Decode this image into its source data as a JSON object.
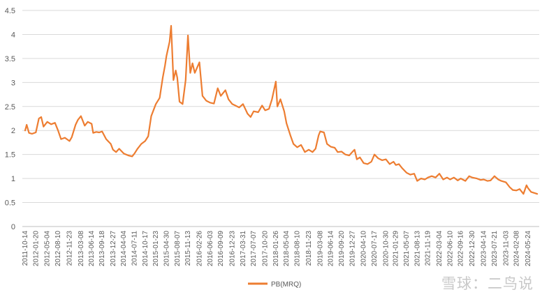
{
  "chart_data": {
    "type": "line",
    "title": "",
    "xlabel": "",
    "ylabel": "",
    "ylim": [
      0,
      4.5
    ],
    "yticks": [
      "0",
      "0.5",
      "1",
      "1.5",
      "2",
      "2.5",
      "3",
      "3.5",
      "4",
      "4.5"
    ],
    "grid": "horizontal",
    "legend_position": "bottom",
    "x_tick_labels": [
      "2011-10-14",
      "2012-01-20",
      "2012-05-04",
      "2012-08-10",
      "2012-11-23",
      "2013-03-08",
      "2013-06-14",
      "2013-09-18",
      "2013-12-27",
      "2014-04-04",
      "2014-07-11",
      "2014-10-17",
      "2015-01-23",
      "2015-04-30",
      "2015-08-07",
      "2015-11-13",
      "2016-02-26",
      "2016-06-03",
      "2016-09-09",
      "2016-12-23",
      "2017-03-31",
      "2017-07-07",
      "2017-10-20",
      "2018-01-26",
      "2018-05-04",
      "2018-08-10",
      "2018-11-23",
      "2019-03-08",
      "2019-06-14",
      "2019-09-20",
      "2019-12-27",
      "2020-04-10",
      "2020-07-17",
      "2020-10-30",
      "2021-01-29",
      "2021-05-07",
      "2021-08-13",
      "2021-11-19",
      "2022-03-04",
      "2022-06-10",
      "2022-09-16",
      "2022-12-30",
      "2023-04-14",
      "2023-07-21",
      "2023-11-03",
      "2024-02-08",
      "2024-05-24"
    ],
    "series": [
      {
        "name": "PB(MRQ)",
        "color": "#ED7D31",
        "values": [
          {
            "x": "2011-10-14",
            "y": 2.0
          },
          {
            "x": "2011-10-28",
            "y": 2.12
          },
          {
            "x": "2011-11-18",
            "y": 1.95
          },
          {
            "x": "2011-12-16",
            "y": 1.93
          },
          {
            "x": "2012-01-20",
            "y": 1.96
          },
          {
            "x": "2012-02-17",
            "y": 2.25
          },
          {
            "x": "2012-03-09",
            "y": 2.28
          },
          {
            "x": "2012-03-30",
            "y": 2.08
          },
          {
            "x": "2012-05-04",
            "y": 2.18
          },
          {
            "x": "2012-06-08",
            "y": 2.13
          },
          {
            "x": "2012-07-13",
            "y": 2.16
          },
          {
            "x": "2012-08-10",
            "y": 2.0
          },
          {
            "x": "2012-09-07",
            "y": 1.82
          },
          {
            "x": "2012-10-12",
            "y": 1.85
          },
          {
            "x": "2012-11-23",
            "y": 1.78
          },
          {
            "x": "2012-12-14",
            "y": 1.86
          },
          {
            "x": "2013-01-18",
            "y": 2.12
          },
          {
            "x": "2013-02-08",
            "y": 2.22
          },
          {
            "x": "2013-03-08",
            "y": 2.3
          },
          {
            "x": "2013-04-12",
            "y": 2.1
          },
          {
            "x": "2013-05-10",
            "y": 2.18
          },
          {
            "x": "2013-06-14",
            "y": 2.14
          },
          {
            "x": "2013-06-28",
            "y": 1.95
          },
          {
            "x": "2013-07-26",
            "y": 1.97
          },
          {
            "x": "2013-08-23",
            "y": 1.96
          },
          {
            "x": "2013-09-18",
            "y": 1.98
          },
          {
            "x": "2013-10-25",
            "y": 1.82
          },
          {
            "x": "2013-12-06",
            "y": 1.72
          },
          {
            "x": "2013-12-27",
            "y": 1.6
          },
          {
            "x": "2014-01-24",
            "y": 1.55
          },
          {
            "x": "2014-02-21",
            "y": 1.62
          },
          {
            "x": "2014-04-04",
            "y": 1.52
          },
          {
            "x": "2014-05-16",
            "y": 1.48
          },
          {
            "x": "2014-06-20",
            "y": 1.46
          },
          {
            "x": "2014-07-11",
            "y": 1.52
          },
          {
            "x": "2014-08-08",
            "y": 1.62
          },
          {
            "x": "2014-09-12",
            "y": 1.72
          },
          {
            "x": "2014-10-17",
            "y": 1.78
          },
          {
            "x": "2014-11-14",
            "y": 1.88
          },
          {
            "x": "2014-12-12",
            "y": 2.3
          },
          {
            "x": "2015-01-23",
            "y": 2.55
          },
          {
            "x": "2015-02-27",
            "y": 2.68
          },
          {
            "x": "2015-03-27",
            "y": 3.1
          },
          {
            "x": "2015-04-17",
            "y": 3.35
          },
          {
            "x": "2015-04-30",
            "y": 3.55
          },
          {
            "x": "2015-05-29",
            "y": 3.85
          },
          {
            "x": "2015-06-12",
            "y": 4.18
          },
          {
            "x": "2015-07-03",
            "y": 3.05
          },
          {
            "x": "2015-07-24",
            "y": 3.25
          },
          {
            "x": "2015-08-07",
            "y": 3.1
          },
          {
            "x": "2015-08-28",
            "y": 2.6
          },
          {
            "x": "2015-09-25",
            "y": 2.55
          },
          {
            "x": "2015-10-23",
            "y": 3.05
          },
          {
            "x": "2015-11-13",
            "y": 3.98
          },
          {
            "x": "2015-12-04",
            "y": 3.2
          },
          {
            "x": "2015-12-25",
            "y": 3.4
          },
          {
            "x": "2016-01-15",
            "y": 3.2
          },
          {
            "x": "2016-02-26",
            "y": 3.42
          },
          {
            "x": "2016-03-25",
            "y": 2.72
          },
          {
            "x": "2016-04-29",
            "y": 2.62
          },
          {
            "x": "2016-06-03",
            "y": 2.58
          },
          {
            "x": "2016-07-08",
            "y": 2.56
          },
          {
            "x": "2016-08-12",
            "y": 2.88
          },
          {
            "x": "2016-09-09",
            "y": 2.72
          },
          {
            "x": "2016-10-21",
            "y": 2.84
          },
          {
            "x": "2016-11-18",
            "y": 2.65
          },
          {
            "x": "2016-12-23",
            "y": 2.55
          },
          {
            "x": "2017-01-20",
            "y": 2.52
          },
          {
            "x": "2017-02-24",
            "y": 2.48
          },
          {
            "x": "2017-03-31",
            "y": 2.55
          },
          {
            "x": "2017-05-12",
            "y": 2.35
          },
          {
            "x": "2017-06-09",
            "y": 2.28
          },
          {
            "x": "2017-07-07",
            "y": 2.4
          },
          {
            "x": "2017-08-18",
            "y": 2.38
          },
          {
            "x": "2017-09-22",
            "y": 2.52
          },
          {
            "x": "2017-10-20",
            "y": 2.42
          },
          {
            "x": "2017-11-24",
            "y": 2.45
          },
          {
            "x": "2017-12-22",
            "y": 2.65
          },
          {
            "x": "2018-01-26",
            "y": 3.02
          },
          {
            "x": "2018-02-09",
            "y": 2.5
          },
          {
            "x": "2018-03-09",
            "y": 2.65
          },
          {
            "x": "2018-04-13",
            "y": 2.4
          },
          {
            "x": "2018-05-04",
            "y": 2.15
          },
          {
            "x": "2018-06-08",
            "y": 1.9
          },
          {
            "x": "2018-07-06",
            "y": 1.72
          },
          {
            "x": "2018-08-10",
            "y": 1.65
          },
          {
            "x": "2018-09-14",
            "y": 1.7
          },
          {
            "x": "2018-10-19",
            "y": 1.55
          },
          {
            "x": "2018-11-23",
            "y": 1.6
          },
          {
            "x": "2018-12-28",
            "y": 1.55
          },
          {
            "x": "2019-01-25",
            "y": 1.62
          },
          {
            "x": "2019-02-22",
            "y": 1.9
          },
          {
            "x": "2019-03-08",
            "y": 1.98
          },
          {
            "x": "2019-04-12",
            "y": 1.96
          },
          {
            "x": "2019-05-10",
            "y": 1.72
          },
          {
            "x": "2019-06-14",
            "y": 1.66
          },
          {
            "x": "2019-07-19",
            "y": 1.64
          },
          {
            "x": "2019-08-16",
            "y": 1.55
          },
          {
            "x": "2019-09-20",
            "y": 1.56
          },
          {
            "x": "2019-10-25",
            "y": 1.5
          },
          {
            "x": "2019-11-29",
            "y": 1.48
          },
          {
            "x": "2019-12-27",
            "y": 1.55
          },
          {
            "x": "2020-01-17",
            "y": 1.6
          },
          {
            "x": "2020-02-07",
            "y": 1.4
          },
          {
            "x": "2020-03-06",
            "y": 1.44
          },
          {
            "x": "2020-04-10",
            "y": 1.32
          },
          {
            "x": "2020-05-15",
            "y": 1.3
          },
          {
            "x": "2020-06-19",
            "y": 1.35
          },
          {
            "x": "2020-07-17",
            "y": 1.5
          },
          {
            "x": "2020-08-21",
            "y": 1.42
          },
          {
            "x": "2020-09-25",
            "y": 1.38
          },
          {
            "x": "2020-10-30",
            "y": 1.4
          },
          {
            "x": "2020-12-04",
            "y": 1.3
          },
          {
            "x": "2021-01-08",
            "y": 1.35
          },
          {
            "x": "2021-01-29",
            "y": 1.28
          },
          {
            "x": "2021-02-26",
            "y": 1.3
          },
          {
            "x": "2021-03-26",
            "y": 1.22
          },
          {
            "x": "2021-05-07",
            "y": 1.12
          },
          {
            "x": "2021-06-11",
            "y": 1.08
          },
          {
            "x": "2021-07-16",
            "y": 1.1
          },
          {
            "x": "2021-08-13",
            "y": 0.95
          },
          {
            "x": "2021-09-17",
            "y": 1.0
          },
          {
            "x": "2021-10-22",
            "y": 0.98
          },
          {
            "x": "2021-11-19",
            "y": 1.02
          },
          {
            "x": "2021-12-24",
            "y": 1.05
          },
          {
            "x": "2022-01-28",
            "y": 1.02
          },
          {
            "x": "2022-03-04",
            "y": 1.1
          },
          {
            "x": "2022-04-08",
            "y": 0.98
          },
          {
            "x": "2022-05-13",
            "y": 1.02
          },
          {
            "x": "2022-06-10",
            "y": 0.98
          },
          {
            "x": "2022-07-15",
            "y": 1.02
          },
          {
            "x": "2022-08-19",
            "y": 0.96
          },
          {
            "x": "2022-09-16",
            "y": 1.0
          },
          {
            "x": "2022-10-28",
            "y": 0.95
          },
          {
            "x": "2022-12-02",
            "y": 1.05
          },
          {
            "x": "2022-12-30",
            "y": 1.02
          },
          {
            "x": "2023-02-10",
            "y": 1.0
          },
          {
            "x": "2023-03-17",
            "y": 0.97
          },
          {
            "x": "2023-04-14",
            "y": 0.98
          },
          {
            "x": "2023-05-19",
            "y": 0.95
          },
          {
            "x": "2023-06-16",
            "y": 0.96
          },
          {
            "x": "2023-07-21",
            "y": 1.05
          },
          {
            "x": "2023-08-25",
            "y": 0.98
          },
          {
            "x": "2023-09-22",
            "y": 0.95
          },
          {
            "x": "2023-11-03",
            "y": 0.92
          },
          {
            "x": "2023-12-08",
            "y": 0.82
          },
          {
            "x": "2024-01-05",
            "y": 0.76
          },
          {
            "x": "2024-02-08",
            "y": 0.75
          },
          {
            "x": "2024-03-08",
            "y": 0.78
          },
          {
            "x": "2024-04-12",
            "y": 0.68
          },
          {
            "x": "2024-05-10",
            "y": 0.86
          },
          {
            "x": "2024-05-24",
            "y": 0.8
          },
          {
            "x": "2024-06-21",
            "y": 0.72
          },
          {
            "x": "2024-07-19",
            "y": 0.7
          },
          {
            "x": "2024-08-16",
            "y": 0.68
          }
        ]
      }
    ]
  },
  "watermark": {
    "text": "雪球：二鸟说",
    "color": "#c8c8c8"
  }
}
